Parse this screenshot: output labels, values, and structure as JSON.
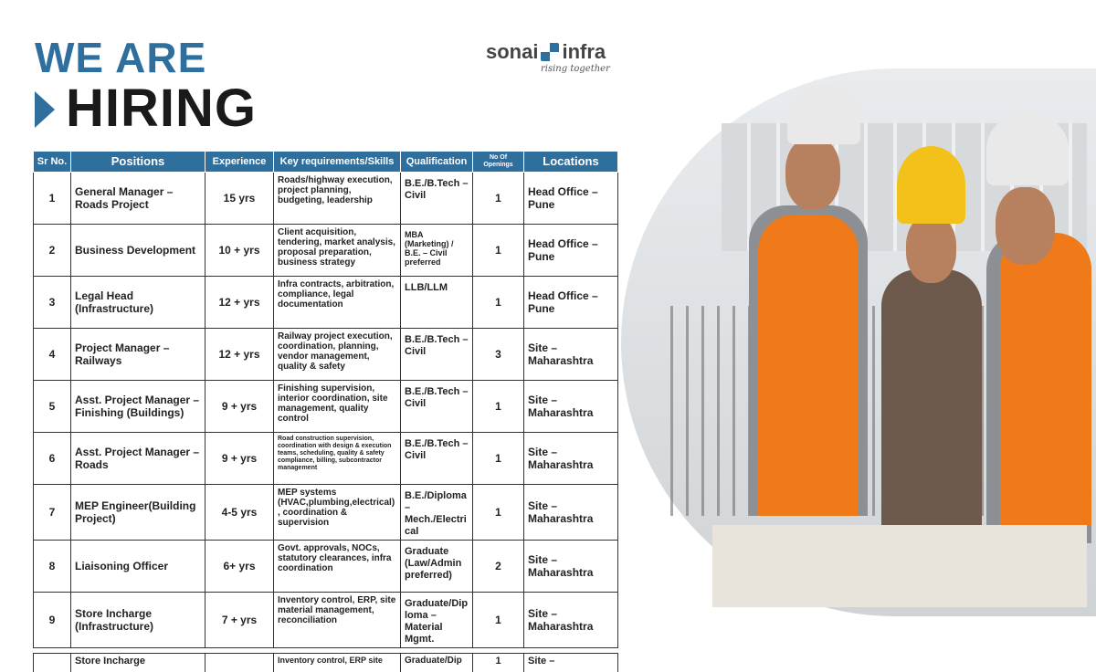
{
  "headline": {
    "line1": "WE ARE",
    "line2": "HIRING"
  },
  "logo": {
    "name_left": "sonai",
    "name_right": "infra",
    "tagline": "rising together",
    "brand_color": "#2e6f9e"
  },
  "table": {
    "columns": [
      "Sr No.",
      "Positions",
      "Experience",
      "Key requirements/Skills",
      "Qualification",
      "No Of Openings",
      "Locations"
    ],
    "rows": [
      {
        "sr": "1",
        "position": "General Manager – Roads Project",
        "experience": "15 yrs",
        "skills": "Roads/highway execution, project planning, budgeting, leadership",
        "qualification": "B.E./B.Tech – Civil",
        "openings": "1",
        "location": "Head Office – Pune"
      },
      {
        "sr": "2",
        "position": "Business Development",
        "experience": "10 + yrs",
        "skills": "Client acquisition, tendering, market analysis, proposal preparation, business strategy",
        "qualification": "MBA (Marketing) / B.E. – Civil preferred",
        "openings": "1",
        "location": "Head Office – Pune"
      },
      {
        "sr": "3",
        "position": "Legal Head (Infrastructure)",
        "experience": "12 + yrs",
        "skills": "Infra contracts, arbitration, compliance, legal documentation",
        "qualification": "LLB/LLM",
        "openings": "1",
        "location": "Head Office – Pune"
      },
      {
        "sr": "4",
        "position": "Project Manager – Railways",
        "experience": "12 + yrs",
        "skills": "Railway project execution, coordination, planning, vendor management, quality & safety",
        "qualification": "B.E./B.Tech – Civil",
        "openings": "3",
        "location": "Site – Maharashtra"
      },
      {
        "sr": "5",
        "position": "Asst. Project Manager – Finishing (Buildings)",
        "experience": "9 + yrs",
        "skills": "Finishing supervision, interior coordination, site management, quality control",
        "qualification": "B.E./B.Tech – Civil",
        "openings": "1",
        "location": "Site – Maharashtra"
      },
      {
        "sr": "6",
        "position": "Asst. Project Manager – Roads",
        "experience": "9 + yrs",
        "skills": "Road construction supervision, coordination with design & execution teams, scheduling, quality & safety compliance, billing, subcontractor management",
        "qualification": "B.E./B.Tech – Civil",
        "openings": "1",
        "location": "Site – Maharashtra"
      },
      {
        "sr": "7",
        "position": "MEP Engineer(Building Project)",
        "experience": "4-5 yrs",
        "skills": "MEP systems (HVAC,plumbing,electrical), coordination & supervision",
        "qualification": "B.E./Diploma – Mech./Electrical",
        "openings": "1",
        "location": "Site – Maharashtra"
      },
      {
        "sr": "8",
        "position": "Liaisoning Officer",
        "experience": "6+ yrs",
        "skills": "Govt. approvals, NOCs, statutory clearances, infra coordination",
        "qualification": "Graduate (Law/Admin preferred)",
        "openings": "2",
        "location": "Site – Maharashtra"
      },
      {
        "sr": "9",
        "position": "Store Incharge (Infrastructure)",
        "experience": "7 + yrs",
        "skills": "Inventory control, ERP, site material management, reconciliation",
        "qualification": "Graduate/Diploma – Material Mgmt.",
        "openings": "1",
        "location": "Site – Maharashtra"
      }
    ],
    "partial_row": {
      "position": "Store Incharge",
      "skills": "Inventory control, ERP site",
      "qualification": "Graduate/Dip",
      "openings": "1",
      "location": "Site –"
    }
  },
  "photo": {
    "subject": "engineers-with-hard-hats",
    "vest_color": "#f07a1a"
  }
}
